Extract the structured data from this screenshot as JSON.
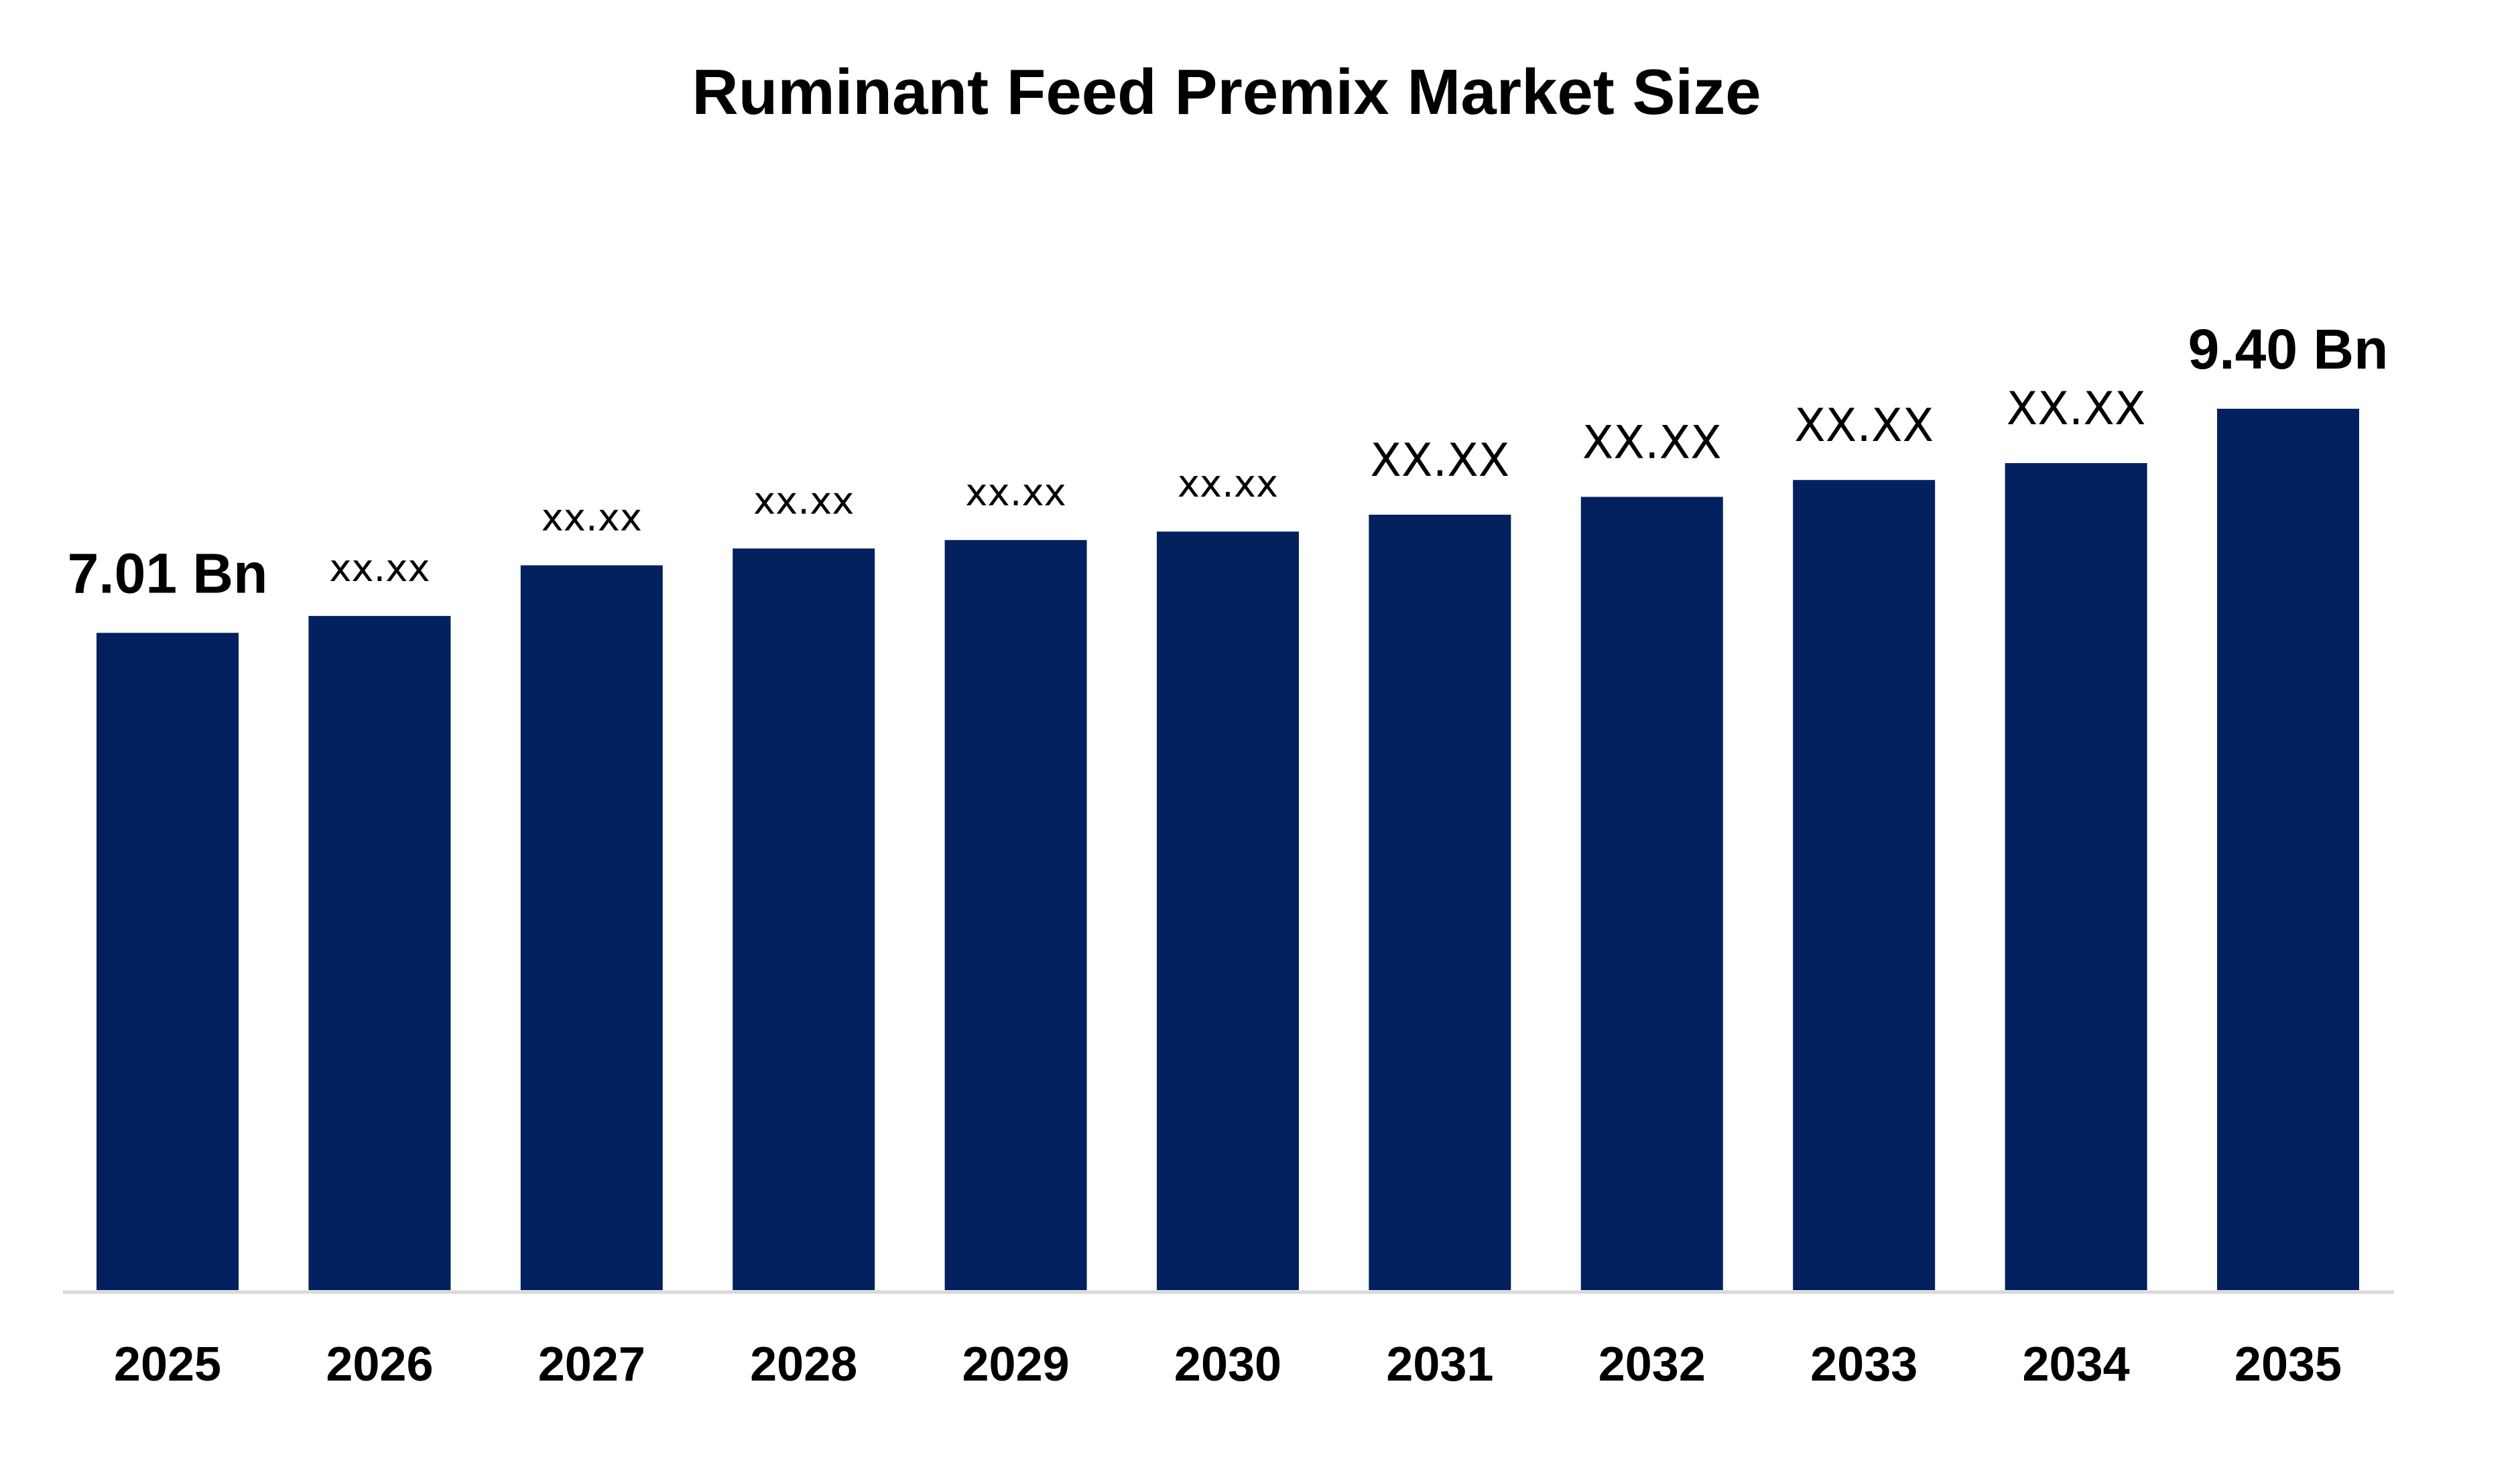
{
  "chart_data": {
    "type": "bar",
    "title": "Ruminant Feed Premix Market Size",
    "xlabel": "",
    "ylabel": "",
    "categories": [
      "2025",
      "2026",
      "2027",
      "2028",
      "2029",
      "2030",
      "2031",
      "2032",
      "2033",
      "2034",
      "2035"
    ],
    "values": [
      7.01,
      7.19,
      7.73,
      7.91,
      8.0,
      8.09,
      8.27,
      8.46,
      8.64,
      8.82,
      9.4
    ],
    "data_labels": [
      "7.01 Bn",
      "xx.xx",
      "xx.xx",
      "xx.xx",
      "xx.xx",
      "xx.xx",
      "XX.XX",
      "XX.XX",
      "XX.XX",
      "XX.XX",
      "9.40 Bn"
    ],
    "ylim": [
      0,
      10.4
    ],
    "grid": false,
    "legend": "none",
    "bar_color": "#03215e",
    "axis_color": "#d9d9d9"
  }
}
